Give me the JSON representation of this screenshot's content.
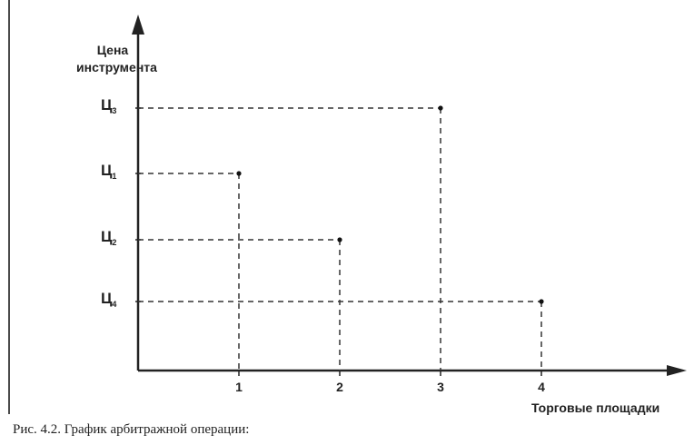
{
  "chart_data": {
    "type": "scatter",
    "ylabel": "Цена инструмента",
    "xlabel": "Торговые площадки",
    "x_ticks": [
      "1",
      "2",
      "3",
      "4"
    ],
    "y_ticks": [
      {
        "main": "Ц",
        "sub": "4"
      },
      {
        "main": "Ц",
        "sub": "2"
      },
      {
        "main": "Ц",
        "sub": "1"
      },
      {
        "main": "Ц",
        "sub": "3"
      }
    ],
    "points": [
      {
        "x": 1,
        "y": "Ц1"
      },
      {
        "x": 2,
        "y": "Ц2"
      },
      {
        "x": 3,
        "y": "Ц3"
      },
      {
        "x": 4,
        "y": "Ц4"
      }
    ],
    "grid": false,
    "drop_lines": true
  },
  "caption": "Рис. 4.2. График арбитражной операции:"
}
